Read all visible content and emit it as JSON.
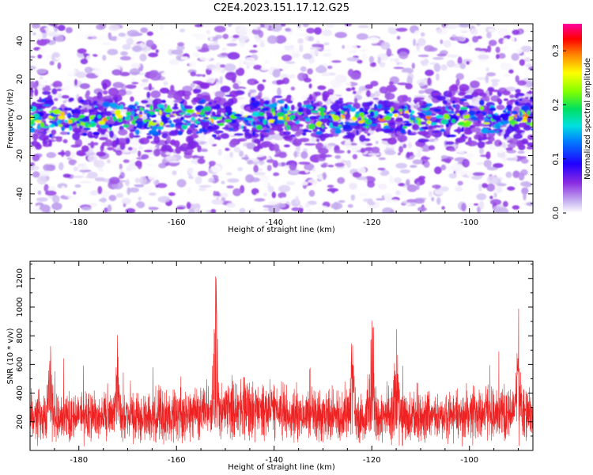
{
  "figure_title": "C2E4.2023.151.17.12.G25",
  "colors": {
    "snr_line": "#ee2222",
    "heatmap_bg": "#ffffff",
    "heatmap_low": "#d8c8f4",
    "heatmap_mid": "#8a2be2"
  },
  "chart_data": [
    {
      "type": "heatmap",
      "xlabel": "Height of straight line (km)",
      "ylabel": "Frequency (Hz)",
      "xlim": [
        -190,
        -87
      ],
      "ylim": [
        -50,
        49
      ],
      "x_ticks": [
        -180,
        -160,
        -140,
        -120,
        -100
      ],
      "y_ticks": [
        -40,
        -20,
        0,
        20,
        40
      ],
      "colorbar": {
        "label": "Normalized spectral amplitude",
        "range": [
          0,
          0.35
        ],
        "ticks": [
          0.0,
          0.1,
          0.2,
          0.3
        ],
        "colormap": "rainbow"
      },
      "band": {
        "center_hz": 0,
        "half_width_hz": 8,
        "peak_amplitude": 0.3
      }
    },
    {
      "type": "line",
      "xlabel": "Height of straight line (km)",
      "ylabel": "SNR (10 * v/v)",
      "xlim": [
        -190,
        -87
      ],
      "ylim": [
        0,
        1320
      ],
      "x_ticks": [
        -180,
        -160,
        -140,
        -120,
        -100
      ],
      "y_ticks": [
        200,
        400,
        600,
        800,
        1000,
        1200
      ],
      "baseline_level": 230,
      "peaks": [
        {
          "x": -152,
          "y": 1320
        },
        {
          "x": -120,
          "y": 1060
        },
        {
          "x": -115,
          "y": 780
        },
        {
          "x": -172,
          "y": 730
        },
        {
          "x": -124,
          "y": 740
        },
        {
          "x": -186,
          "y": 700
        },
        {
          "x": -90,
          "y": 690
        }
      ]
    }
  ]
}
